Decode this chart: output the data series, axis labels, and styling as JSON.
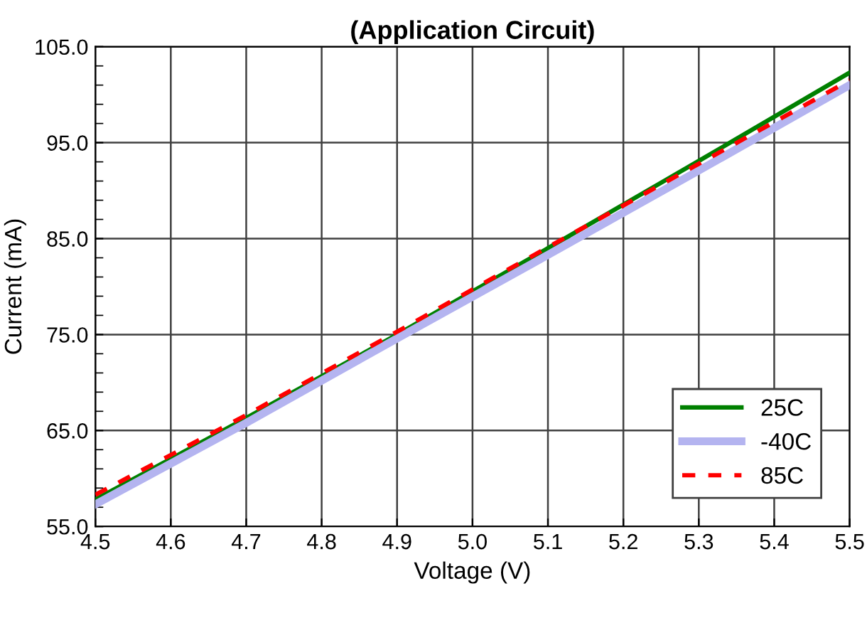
{
  "chart_data": {
    "type": "line",
    "title": "(Application Circuit)",
    "xlabel": "Voltage (V)",
    "ylabel": "Current (mA)",
    "x": [
      4.5,
      4.7,
      4.9,
      5.1,
      5.3,
      5.5
    ],
    "series": [
      {
        "name": "25C",
        "color": "#008000",
        "line_style": "solid",
        "values": [
          57.8,
          66.3,
          75.0,
          84.0,
          93.1,
          102.3
        ]
      },
      {
        "name": "-40C",
        "color": "#b4b4f0",
        "line_style": "solid",
        "values": [
          57.3,
          65.8,
          74.6,
          83.3,
          92.1,
          101.0
        ]
      },
      {
        "name": "85C",
        "color": "#ff0000",
        "line_style": "dashed",
        "values": [
          58.3,
          66.6,
          75.3,
          84.1,
          92.8,
          101.5
        ]
      }
    ],
    "xlim": [
      4.5,
      5.5
    ],
    "ylim": [
      55.0,
      105.0
    ],
    "xticks": [
      {
        "value": 4.5,
        "label": "4.5"
      },
      {
        "value": 4.6,
        "label": "4.6"
      },
      {
        "value": 4.7,
        "label": "4.7"
      },
      {
        "value": 4.8,
        "label": "4.8"
      },
      {
        "value": 4.9,
        "label": "4.9"
      },
      {
        "value": 5.0,
        "label": "5.0"
      },
      {
        "value": 5.1,
        "label": "5.1"
      },
      {
        "value": 5.2,
        "label": "5.2"
      },
      {
        "value": 5.3,
        "label": "5.3"
      },
      {
        "value": 5.4,
        "label": "5.4"
      },
      {
        "value": 5.5,
        "label": "5.5"
      }
    ],
    "yticks": [
      {
        "value": 55,
        "label": "55.0"
      },
      {
        "value": 65,
        "label": "65.0"
      },
      {
        "value": 75,
        "label": "75.0"
      },
      {
        "value": 85,
        "label": "85.0"
      },
      {
        "value": 95,
        "label": "95.0"
      },
      {
        "value": 105,
        "label": "105.0"
      }
    ],
    "grid": true,
    "legend": "bottom right",
    "marker": "none"
  }
}
